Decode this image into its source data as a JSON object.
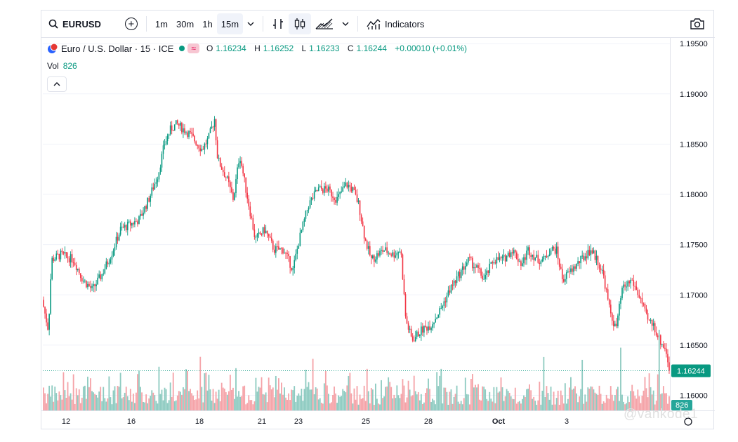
{
  "toolbar": {
    "symbol": "EURUSD",
    "intervals": [
      "1m",
      "30m",
      "1h",
      "15m"
    ],
    "active_interval": "15m",
    "indicators_label": "Indicators"
  },
  "legend": {
    "title": "Euro / U.S. Dollar · 15 · ICE",
    "o_label": "O",
    "o": "1.16234",
    "h_label": "H",
    "h": "1.16252",
    "l_label": "L",
    "l": "1.16233",
    "c_label": "C",
    "c": "1.16244",
    "change": "+0.00010 (+0.01%)",
    "eq_symbol": "≈"
  },
  "volume": {
    "label": "Vol",
    "value": "826"
  },
  "watermark": "@vankode1",
  "colors": {
    "up": "#089981",
    "down": "#f23645",
    "vol_up": "#8ecbc1",
    "vol_down": "#f5a3a8",
    "grid": "#f0f3fa"
  },
  "chart_data": {
    "type": "candlestick",
    "symbol": "EURUSD",
    "interval": "15",
    "ylim": [
      1.158,
      1.196
    ],
    "y_ticks": [
      1.195,
      1.19,
      1.185,
      1.18,
      1.175,
      1.17,
      1.165,
      1.16
    ],
    "x_ticks": [
      "12",
      "16",
      "18",
      "21",
      "23",
      "25",
      "28",
      "Oct",
      "3"
    ],
    "last_price": "1.16244",
    "last_volume": "826",
    "close_path": [
      [
        0,
        1.1695
      ],
      [
        0.01,
        1.1665
      ],
      [
        0.015,
        1.1735
      ],
      [
        0.03,
        1.174
      ],
      [
        0.05,
        1.1735
      ],
      [
        0.065,
        1.1715
      ],
      [
        0.08,
        1.1705
      ],
      [
        0.095,
        1.172
      ],
      [
        0.11,
        1.174
      ],
      [
        0.125,
        1.1765
      ],
      [
        0.14,
        1.177
      ],
      [
        0.155,
        1.1775
      ],
      [
        0.17,
        1.1795
      ],
      [
        0.185,
        1.182
      ],
      [
        0.195,
        1.185
      ],
      [
        0.205,
        1.1865
      ],
      [
        0.215,
        1.187
      ],
      [
        0.235,
        1.186
      ],
      [
        0.255,
        1.1845
      ],
      [
        0.265,
        1.1855
      ],
      [
        0.275,
        1.1875
      ],
      [
        0.28,
        1.1835
      ],
      [
        0.295,
        1.1815
      ],
      [
        0.305,
        1.1795
      ],
      [
        0.315,
        1.184
      ],
      [
        0.325,
        1.1805
      ],
      [
        0.34,
        1.1755
      ],
      [
        0.355,
        1.1765
      ],
      [
        0.37,
        1.1745
      ],
      [
        0.385,
        1.1745
      ],
      [
        0.4,
        1.1725
      ],
      [
        0.41,
        1.1755
      ],
      [
        0.425,
        1.179
      ],
      [
        0.44,
        1.1805
      ],
      [
        0.455,
        1.1805
      ],
      [
        0.47,
        1.1795
      ],
      [
        0.485,
        1.181
      ],
      [
        0.495,
        1.1805
      ],
      [
        0.505,
        1.179
      ],
      [
        0.515,
        1.1755
      ],
      [
        0.525,
        1.1735
      ],
      [
        0.545,
        1.1745
      ],
      [
        0.56,
        1.174
      ],
      [
        0.572,
        1.1745
      ],
      [
        0.58,
        1.1675
      ],
      [
        0.59,
        1.1655
      ],
      [
        0.605,
        1.1665
      ],
      [
        0.62,
        1.167
      ],
      [
        0.635,
        1.1685
      ],
      [
        0.65,
        1.1705
      ],
      [
        0.665,
        1.172
      ],
      [
        0.68,
        1.1735
      ],
      [
        0.695,
        1.1725
      ],
      [
        0.705,
        1.1715
      ],
      [
        0.72,
        1.1735
      ],
      [
        0.735,
        1.1735
      ],
      [
        0.75,
        1.1745
      ],
      [
        0.765,
        1.173
      ],
      [
        0.775,
        1.1745
      ],
      [
        0.79,
        1.1735
      ],
      [
        0.8,
        1.1735
      ],
      [
        0.81,
        1.1745
      ],
      [
        0.82,
        1.1745
      ],
      [
        0.83,
        1.1715
      ],
      [
        0.845,
        1.1725
      ],
      [
        0.86,
        1.1735
      ],
      [
        0.875,
        1.1745
      ],
      [
        0.885,
        1.1735
      ],
      [
        0.895,
        1.172
      ],
      [
        0.905,
        1.1685
      ],
      [
        0.915,
        1.1665
      ],
      [
        0.925,
        1.1705
      ],
      [
        0.94,
        1.1715
      ],
      [
        0.955,
        1.1695
      ],
      [
        0.965,
        1.1675
      ],
      [
        0.975,
        1.167
      ],
      [
        0.985,
        1.1655
      ],
      [
        0.995,
        1.1645
      ],
      [
        1.0,
        1.16244
      ]
    ]
  }
}
